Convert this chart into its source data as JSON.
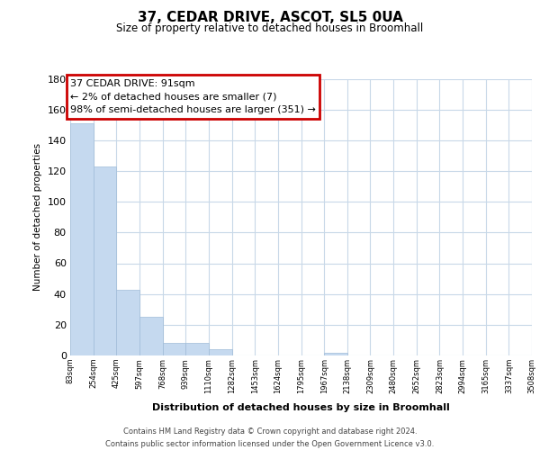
{
  "title": "37, CEDAR DRIVE, ASCOT, SL5 0UA",
  "subtitle": "Size of property relative to detached houses in Broomhall",
  "bar_values": [
    151,
    123,
    43,
    25,
    8,
    8,
    4,
    0,
    0,
    0,
    0,
    2,
    0,
    0,
    0,
    0,
    0,
    0,
    0,
    0
  ],
  "bin_labels": [
    "83sqm",
    "254sqm",
    "425sqm",
    "597sqm",
    "768sqm",
    "939sqm",
    "1110sqm",
    "1282sqm",
    "1453sqm",
    "1624sqm",
    "1795sqm",
    "1967sqm",
    "2138sqm",
    "2309sqm",
    "2480sqm",
    "2652sqm",
    "2823sqm",
    "2994sqm",
    "3165sqm",
    "3337sqm",
    "3508sqm"
  ],
  "bar_color": "#c5d9ef",
  "bar_edge_color": "#a0bcd8",
  "ylabel": "Number of detached properties",
  "xlabel": "Distribution of detached houses by size in Broomhall",
  "ylim": [
    0,
    180
  ],
  "yticks": [
    0,
    20,
    40,
    60,
    80,
    100,
    120,
    140,
    160,
    180
  ],
  "annotation_title": "37 CEDAR DRIVE: 91sqm",
  "annotation_line1": "← 2% of detached houses are smaller (7)",
  "annotation_line2": "98% of semi-detached houses are larger (351) →",
  "annotation_border_color": "#cc0000",
  "footer_line1": "Contains HM Land Registry data © Crown copyright and database right 2024.",
  "footer_line2": "Contains public sector information licensed under the Open Government Licence v3.0.",
  "background_color": "#ffffff",
  "grid_color": "#c8d8e8"
}
